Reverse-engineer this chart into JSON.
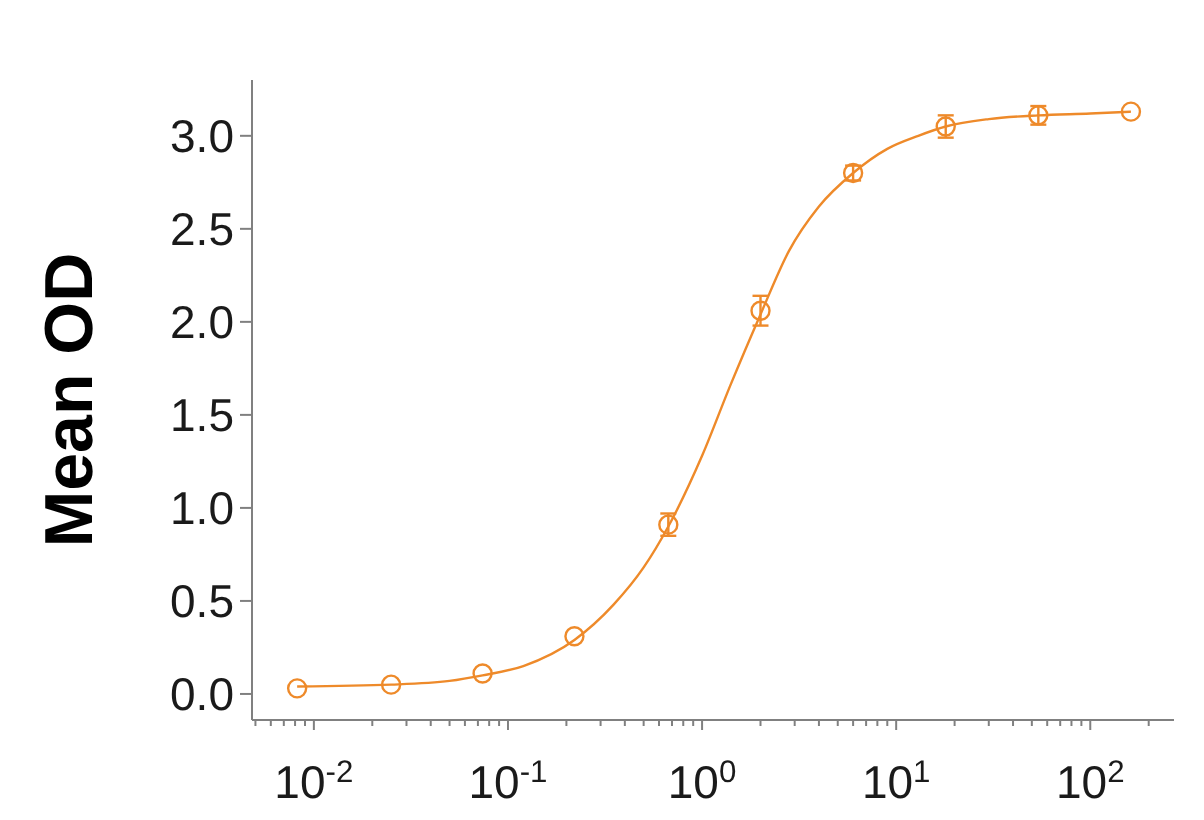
{
  "chart_data": {
    "type": "scatter",
    "ylabel": "Mean OD",
    "x": [
      0.0082,
      0.025,
      0.074,
      0.22,
      0.67,
      2,
      6,
      18,
      54,
      162
    ],
    "xlim": [
      0.0048,
      270
    ],
    "xticks": [
      {
        "value": 0.005,
        "label": null
      },
      {
        "value": 0.006,
        "label": null
      },
      {
        "value": 0.007,
        "label": null
      },
      {
        "value": 0.008,
        "label": null
      },
      {
        "value": 0.009,
        "label": null
      },
      {
        "value": 0.01,
        "label": "10$^{-2}$"
      },
      {
        "value": 0.02,
        "label": null
      },
      {
        "value": 0.03,
        "label": null
      },
      {
        "value": 0.04,
        "label": null
      },
      {
        "value": 0.05,
        "label": null
      },
      {
        "value": 0.06,
        "label": null
      },
      {
        "value": 0.07,
        "label": null
      },
      {
        "value": 0.08,
        "label": null
      },
      {
        "value": 0.09,
        "label": null
      },
      {
        "value": 0.1,
        "label": "10$^{-1}$"
      },
      {
        "value": 0.2,
        "label": null
      },
      {
        "value": 0.3,
        "label": null
      },
      {
        "value": 0.4,
        "label": null
      },
      {
        "value": 0.5,
        "label": null
      },
      {
        "value": 0.6,
        "label": null
      },
      {
        "value": 0.7,
        "label": null
      },
      {
        "value": 0.8,
        "label": null
      },
      {
        "value": 0.9,
        "label": null
      },
      {
        "value": 1,
        "label": "10$^{0}$"
      },
      {
        "value": 2,
        "label": null
      },
      {
        "value": 3,
        "label": null
      },
      {
        "value": 4,
        "label": null
      },
      {
        "value": 5,
        "label": null
      },
      {
        "value": 6,
        "label": null
      },
      {
        "value": 7,
        "label": null
      },
      {
        "value": 8,
        "label": null
      },
      {
        "value": 9,
        "label": null
      },
      {
        "value": 10,
        "label": "10$^{1}$"
      },
      {
        "value": 20,
        "label": null
      },
      {
        "value": 30,
        "label": null
      },
      {
        "value": 40,
        "label": null
      },
      {
        "value": 50,
        "label": null
      },
      {
        "value": 60,
        "label": null
      },
      {
        "value": 70,
        "label": null
      },
      {
        "value": 80,
        "label": null
      },
      {
        "value": 90,
        "label": null
      },
      {
        "value": 100,
        "label": "10$^{2}$"
      },
      {
        "value": 200,
        "label": null
      }
    ],
    "ylim": [
      -0.14,
      3.3
    ],
    "yticks": [
      {
        "value": 0,
        "label": "0.0"
      },
      0.5,
      {
        "value": 1,
        "label": "1.0"
      },
      1.5,
      {
        "value": 2,
        "label": "2.0"
      },
      2.5,
      {
        "value": 3,
        "label": "3.0"
      }
    ],
    "log": "x",
    "marker": "circle",
    "series": [
      {
        "type": "line",
        "color": "#ee8a2a",
        "marker": "none",
        "x": [
          0.0082,
          0.025,
          0.05,
          0.074,
          0.12,
          0.22,
          0.35,
          0.5,
          0.67,
          1,
          1.4,
          2,
          2.8,
          4,
          6,
          9,
          13,
          18,
          30,
          54,
          100,
          162
        ],
        "values": [
          0.04,
          0.05,
          0.07,
          0.1,
          0.15,
          0.29,
          0.48,
          0.68,
          0.9,
          1.28,
          1.66,
          2.04,
          2.38,
          2.62,
          2.8,
          2.93,
          3,
          3.05,
          3.09,
          3.11,
          3.12,
          3.13
        ]
      },
      {
        "color": "#ee8a2a",
        "values": [
          0.03,
          0.05,
          0.11,
          0.31,
          0.91,
          2.06,
          2.8,
          3.05,
          3.11,
          3.13
        ],
        "errors": [
          null,
          null,
          null,
          null,
          0.06,
          0.08,
          0.04,
          0.06,
          0.05,
          null
        ]
      }
    ]
  }
}
